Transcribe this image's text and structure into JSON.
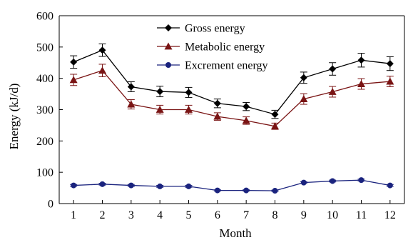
{
  "chart_data": {
    "type": "line",
    "xlabel": "Month",
    "ylabel": "Energy (kJ/d)",
    "x": [
      1,
      2,
      3,
      4,
      5,
      6,
      7,
      8,
      9,
      10,
      11,
      12
    ],
    "xlim": [
      0.5,
      12.5
    ],
    "ylim": [
      0,
      600
    ],
    "yticks": [
      0,
      100,
      200,
      300,
      400,
      500,
      600
    ],
    "grid": false,
    "legend_position": "top-center",
    "series": [
      {
        "name": "Gross energy",
        "marker": "diamond",
        "color": "#000000",
        "values": [
          452,
          490,
          373,
          358,
          355,
          320,
          310,
          285,
          402,
          430,
          458,
          447
        ],
        "errors": [
          20,
          20,
          16,
          17,
          16,
          14,
          13,
          13,
          18,
          20,
          22,
          22
        ]
      },
      {
        "name": "Metabolic energy",
        "marker": "triangle",
        "color": "#7a1414",
        "values": [
          395,
          425,
          317,
          300,
          300,
          278,
          265,
          247,
          334,
          357,
          382,
          390
        ],
        "errors": [
          18,
          20,
          15,
          14,
          14,
          12,
          12,
          10,
          17,
          17,
          17,
          17
        ]
      },
      {
        "name": "Excrement energy",
        "marker": "circle",
        "color": "#1a237e",
        "values": [
          58,
          62,
          58,
          55,
          55,
          42,
          42,
          41,
          67,
          72,
          75,
          58
        ],
        "errors": [
          3,
          3,
          3,
          3,
          3,
          2,
          2,
          2,
          3,
          3,
          3,
          3
        ]
      }
    ]
  }
}
